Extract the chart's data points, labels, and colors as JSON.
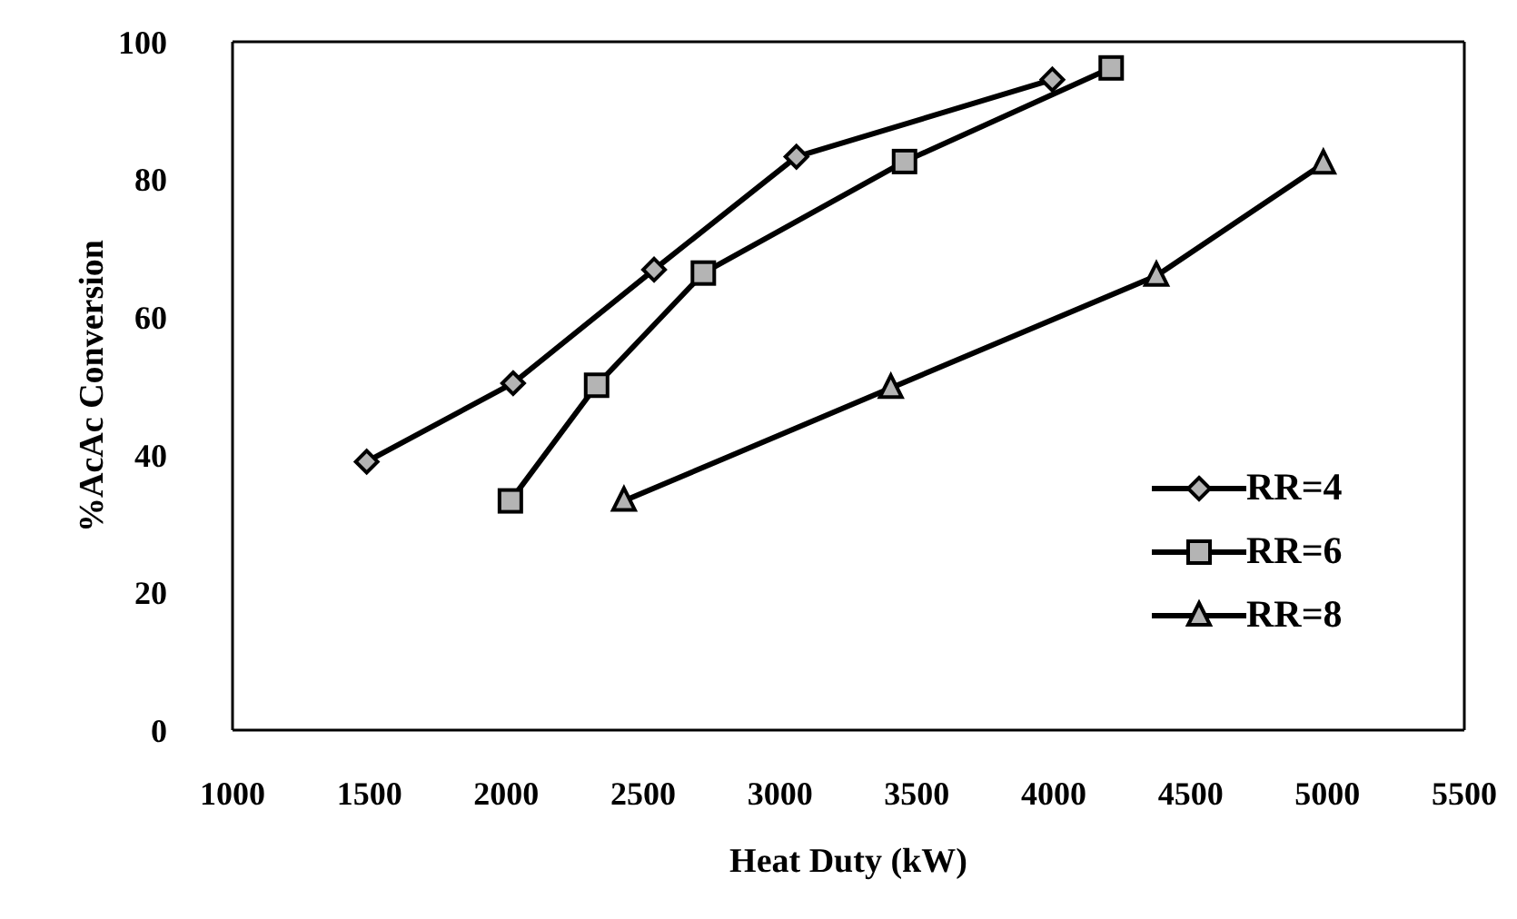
{
  "chart_data": {
    "type": "line",
    "xlabel": "Heat Duty (kW)",
    "ylabel": "%AcAc Conversion",
    "xlim": [
      1000,
      5500
    ],
    "xticks": [
      1000,
      1500,
      2000,
      2500,
      3000,
      3500,
      4000,
      4500,
      5000,
      5500
    ],
    "ylim": [
      0,
      100
    ],
    "yticks": [
      0,
      20,
      40,
      60,
      80,
      100
    ],
    "legend": "bottom right",
    "line_style": "solid",
    "series": [
      {
        "name": "RR=4",
        "color": "#000000",
        "marker": "diamond",
        "x": [
          1490,
          2025,
          2540,
          3060,
          3995
        ],
        "values": [
          39.0,
          50.4,
          66.9,
          83.3,
          94.5
        ]
      },
      {
        "name": "RR=6",
        "color": "#000000",
        "marker": "square",
        "x": [
          2015,
          2330,
          2720,
          3455,
          4210
        ],
        "values": [
          33.3,
          50.1,
          66.4,
          82.6,
          96.2
        ]
      },
      {
        "name": "RR=8",
        "color": "#000000",
        "marker": "triangle",
        "x": [
          2430,
          3405,
          4375,
          4985
        ],
        "values": [
          33.3,
          49.7,
          66.0,
          82.3
        ]
      }
    ]
  }
}
